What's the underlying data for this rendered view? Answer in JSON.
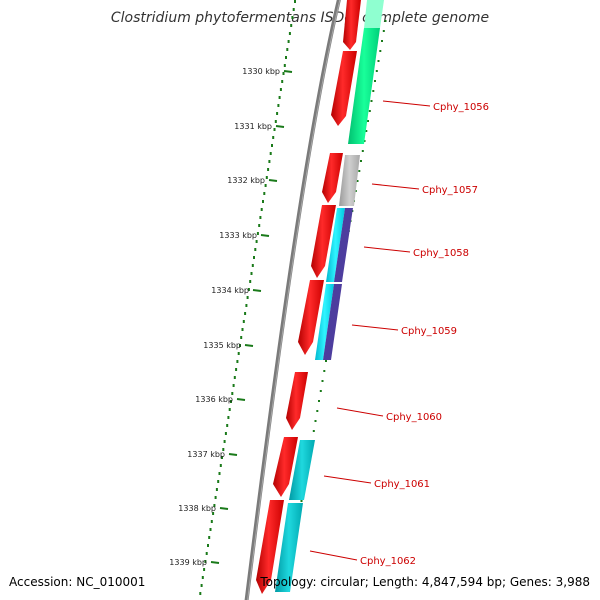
{
  "title": "Clostridium phytofermentans ISDg, complete genome",
  "footer": {
    "accession": "Accession: NC_010001",
    "topology": "Topology: circular; Length: 4,847,594 bp; Genes: 3,988"
  },
  "scale": {
    "ticks": [
      "1330 kbp",
      "1331 kbp",
      "1332 kbp",
      "1333 kbp",
      "1334 kbp",
      "1335 kbp",
      "1336 kbp",
      "1337 kbp",
      "1338 kbp",
      "1339 kbp"
    ]
  },
  "colors": {
    "backbone": "#7a7a7a",
    "cds": "#ff0000",
    "green": "#00f08a",
    "gray": "#b8b8b8",
    "cyan": "#00e4f4",
    "purple": "#4d3d9e",
    "teal": "#00c2c8",
    "tick": "#1a7a1a",
    "label": "#cc0000"
  },
  "genes": [
    {
      "name": "Cphy_1056"
    },
    {
      "name": "Cphy_1057"
    },
    {
      "name": "Cphy_1058"
    },
    {
      "name": "Cphy_1059"
    },
    {
      "name": "Cphy_1060"
    },
    {
      "name": "Cphy_1061"
    },
    {
      "name": "Cphy_1062"
    }
  ]
}
